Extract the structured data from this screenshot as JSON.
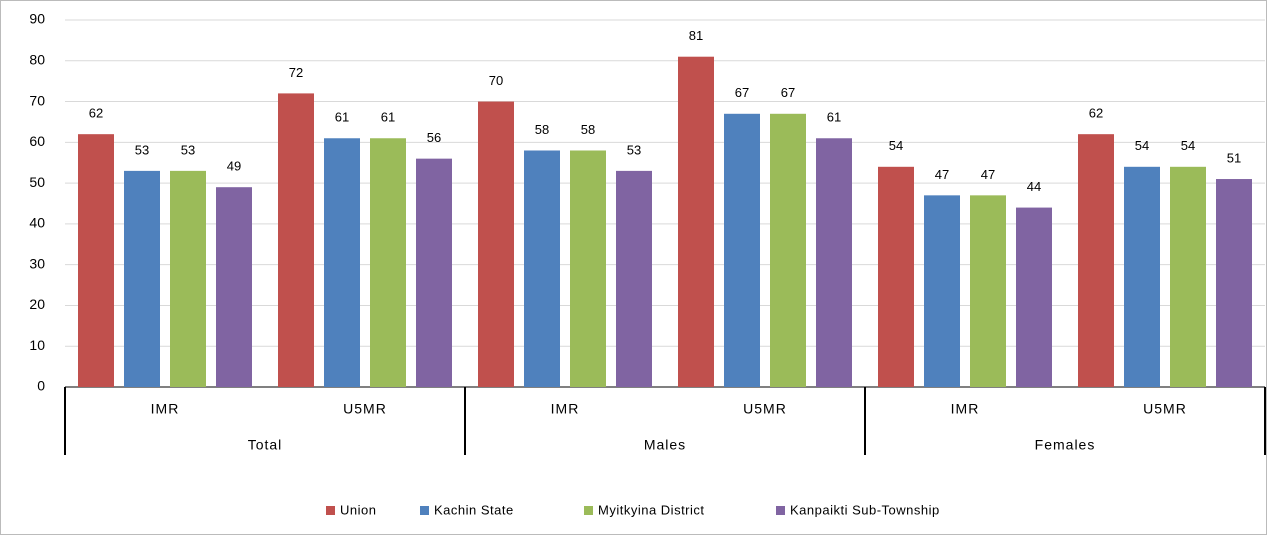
{
  "chart_data": {
    "type": "bar",
    "categories": [
      "IMR",
      "U5MR",
      "IMR",
      "U5MR",
      "IMR",
      "U5MR"
    ],
    "groups": [
      "Total",
      "Males",
      "Females"
    ],
    "series": [
      {
        "name": "Union",
        "color": "#c0504d",
        "values": [
          62,
          72,
          70,
          81,
          54,
          62
        ]
      },
      {
        "name": "Kachin State",
        "color": "#4f81bd",
        "values": [
          53,
          61,
          58,
          67,
          47,
          54
        ]
      },
      {
        "name": "Myitkyina District",
        "color": "#9bbb59",
        "values": [
          53,
          61,
          58,
          67,
          47,
          54
        ]
      },
      {
        "name": "Kanpaikti Sub-Township",
        "color": "#8064a2",
        "values": [
          49,
          56,
          53,
          61,
          44,
          51
        ]
      }
    ],
    "ylim": [
      0,
      90
    ],
    "yticks": [
      0,
      10,
      20,
      30,
      40,
      50,
      60,
      70,
      80,
      90
    ],
    "grid": true,
    "legend": "bottom"
  }
}
